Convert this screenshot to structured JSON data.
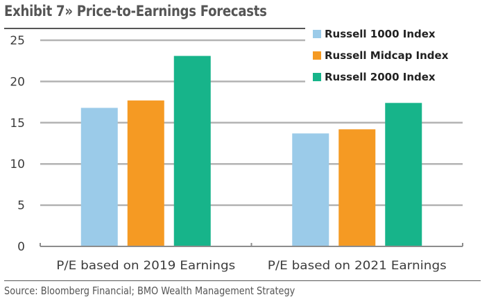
{
  "chart_data": {
    "type": "bar",
    "title": "Exhibit 7» Price-to-Earnings Forecasts",
    "categories": [
      "P/E based on 2019 Earnings",
      "P/E based on 2021 Earnings"
    ],
    "series": [
      {
        "name": "Russell 1000 Index",
        "color": "#9bcbe9",
        "values": [
          16.8,
          13.7
        ]
      },
      {
        "name": "Russell Midcap Index",
        "color": "#f59a23",
        "values": [
          17.7,
          14.2
        ]
      },
      {
        "name": "Russell 2000 Index",
        "color": "#17b48a",
        "values": [
          23.1,
          17.4
        ]
      }
    ],
    "xlabel": "",
    "ylabel": "",
    "ylim": [
      0,
      25
    ],
    "yticks": [
      0,
      5,
      10,
      15,
      20,
      25
    ],
    "grid": true,
    "legend": "top-right",
    "source": "Source: Bloomberg Financial; BMO Wealth Management Strategy"
  }
}
